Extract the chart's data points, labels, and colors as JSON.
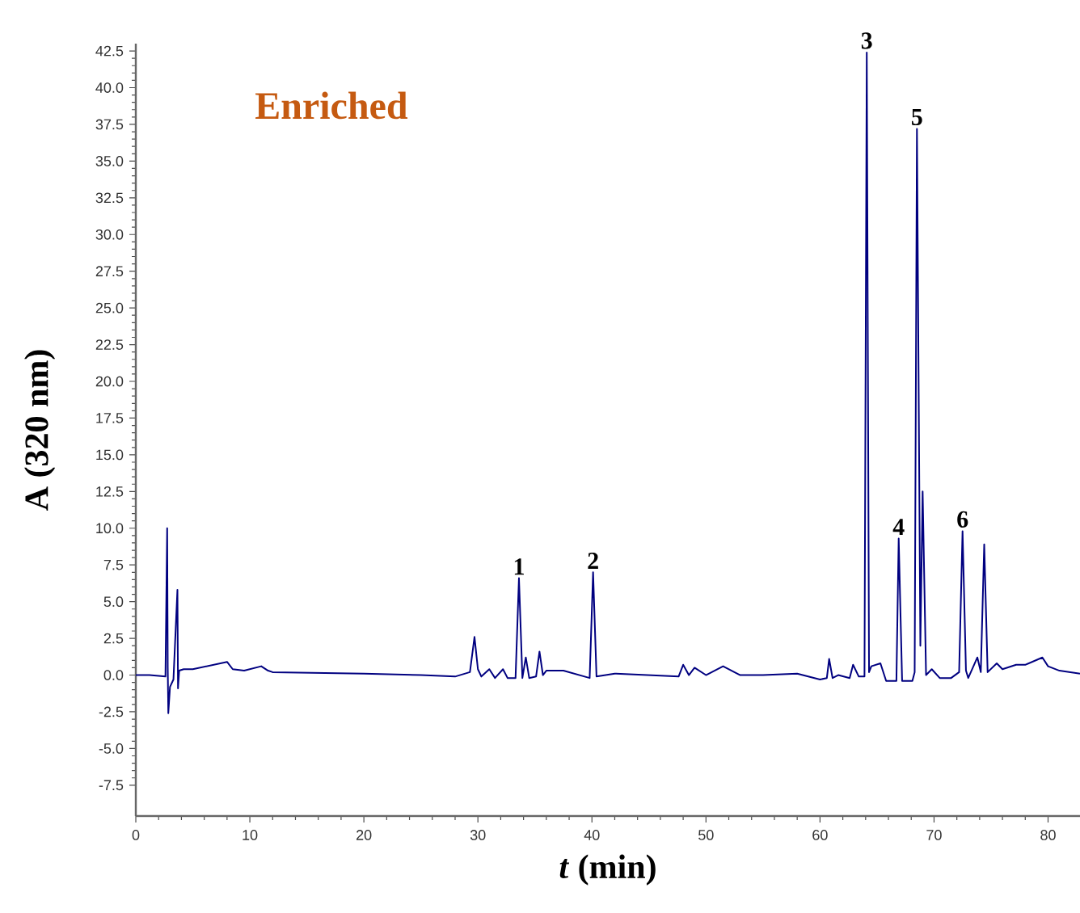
{
  "chart_data": {
    "type": "line",
    "title": "Enriched",
    "xlabel": "*t* (min)",
    "ylabel": "A (320 nm)",
    "xlim": [
      0,
      82.8
    ],
    "ylim": [
      -9.6,
      43
    ],
    "xticks": [
      0,
      10,
      20,
      30,
      40,
      50,
      60,
      70,
      80
    ],
    "yticks": [
      {
        "value": -7.5,
        "label": "-7.5"
      },
      {
        "value": -5,
        "label": "-5.0"
      },
      {
        "value": -2.5,
        "label": "-2.5"
      },
      {
        "value": 0,
        "label": "0.0"
      },
      {
        "value": 2.5,
        "label": "2.5"
      },
      {
        "value": 5,
        "label": "5.0"
      },
      {
        "value": 7.5,
        "label": "7.5"
      },
      {
        "value": 10,
        "label": "10.0"
      },
      {
        "value": 12.5,
        "label": "12.5"
      },
      {
        "value": 15,
        "label": "15.0"
      },
      {
        "value": 17.5,
        "label": "17.5"
      },
      {
        "value": 20,
        "label": "20.0"
      },
      {
        "value": 22.5,
        "label": "22.5"
      },
      {
        "value": 25,
        "label": "25.0"
      },
      {
        "value": 27.5,
        "label": "27.5"
      },
      {
        "value": 30,
        "label": "30.0"
      },
      {
        "value": 32.5,
        "label": "32.5"
      },
      {
        "value": 35,
        "label": "35.0"
      },
      {
        "value": 37.5,
        "label": "37.5"
      },
      {
        "value": 40,
        "label": "40.0"
      },
      {
        "value": 42.5,
        "label": "42.5"
      }
    ],
    "marker": "none",
    "line_style": "solid",
    "series": [
      {
        "color": "#000080",
        "x": [
          0,
          1.2,
          2.6,
          2.75,
          2.8,
          2.85,
          3.0,
          3.3,
          3.65,
          3.7,
          3.8,
          4.2,
          5,
          8,
          8.5,
          9.5,
          11,
          11.6,
          12,
          20,
          25,
          28,
          29.3,
          29.7,
          30.0,
          30.3,
          31,
          31.5,
          32.2,
          32.6,
          33.3,
          33.6,
          33.9,
          34.2,
          34.5,
          35.1,
          35.4,
          35.7,
          36,
          37.5,
          39.8,
          40.1,
          40.4,
          42,
          47.6,
          48,
          48.5,
          49,
          50,
          51.5,
          53,
          55,
          58,
          60,
          60.6,
          60.8,
          61.1,
          61.6,
          62.6,
          62.9,
          63.4,
          63.9,
          64.1,
          64.3,
          64.5,
          65.3,
          65.8,
          66.7,
          66.9,
          67.2,
          68.1,
          68.3,
          68.5,
          68.8,
          69.0,
          69.3,
          69.8,
          70.5,
          71.5,
          72.2,
          72.5,
          72.8,
          73.0,
          73.8,
          74.1,
          74.4,
          74.7,
          75.5,
          76,
          77.2,
          78,
          79.5,
          80,
          81,
          82.8
        ],
        "values": [
          0,
          0,
          -0.1,
          10.0,
          0.5,
          -2.6,
          -0.8,
          -0.3,
          5.8,
          -0.9,
          0.3,
          0.4,
          0.4,
          0.9,
          0.4,
          0.3,
          0.6,
          0.3,
          0.2,
          0.1,
          0.0,
          -0.1,
          0.2,
          2.6,
          0.4,
          -0.1,
          0.4,
          -0.2,
          0.4,
          -0.2,
          -0.2,
          6.6,
          -0.2,
          1.2,
          -0.2,
          -0.1,
          1.6,
          0.0,
          0.3,
          0.3,
          -0.2,
          7.0,
          -0.1,
          0.1,
          -0.1,
          0.7,
          0.0,
          0.5,
          0.0,
          0.6,
          0.0,
          0.0,
          0.1,
          -0.3,
          -0.2,
          1.1,
          -0.2,
          0.0,
          -0.2,
          0.7,
          -0.1,
          -0.1,
          42.4,
          0.2,
          0.6,
          0.8,
          -0.4,
          -0.4,
          9.3,
          -0.4,
          -0.4,
          0.2,
          37.2,
          2.0,
          12.5,
          0.0,
          0.4,
          -0.2,
          -0.2,
          0.2,
          9.8,
          0.3,
          -0.2,
          1.2,
          0.2,
          8.9,
          0.2,
          0.8,
          0.4,
          0.7,
          0.7,
          1.2,
          0.6,
          0.3,
          0.1
        ]
      }
    ],
    "annotations": [
      {
        "text": "1",
        "x": 33.6,
        "y": 6.6
      },
      {
        "text": "2",
        "x": 40.1,
        "y": 7.0
      },
      {
        "text": "3",
        "x": 64.1,
        "y": 42.4
      },
      {
        "text": "4",
        "x": 66.9,
        "y": 9.3
      },
      {
        "text": "5",
        "x": 68.5,
        "y": 37.2
      },
      {
        "text": "6",
        "x": 72.5,
        "y": 9.8
      }
    ]
  }
}
